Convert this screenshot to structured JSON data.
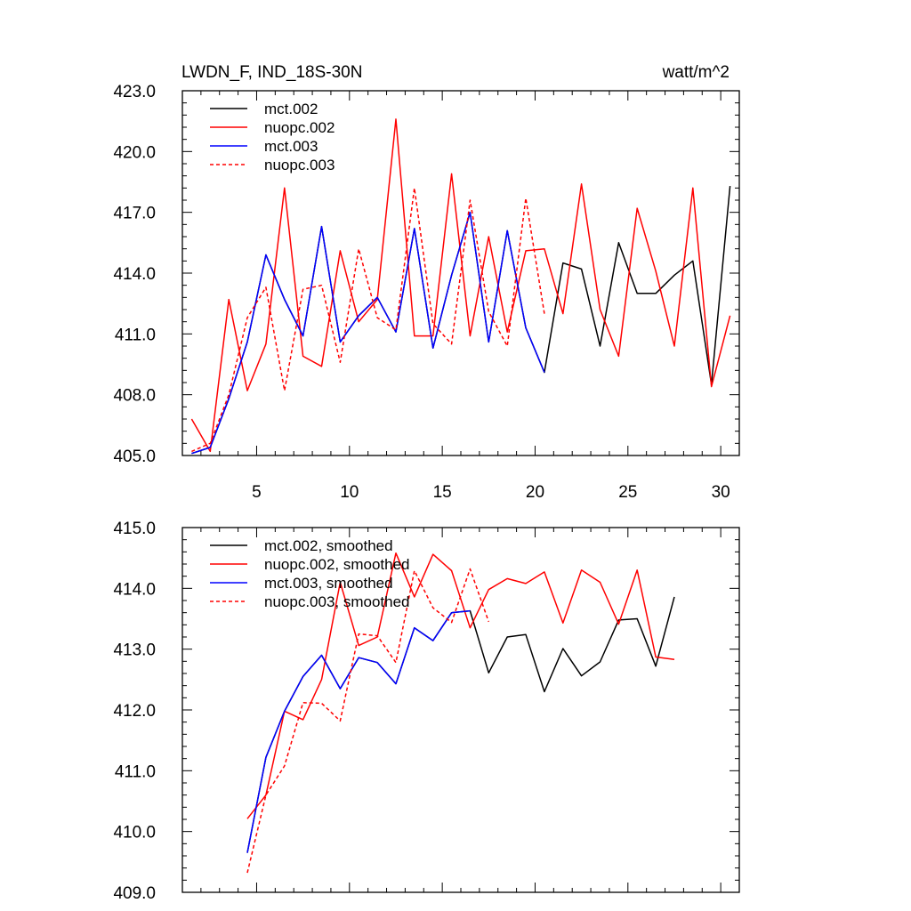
{
  "header": {
    "left_title": "LWDN_F, IND_18S-30N",
    "right_title": "watt/m^2"
  },
  "chart_data": [
    {
      "type": "line",
      "title": "LWDN_F, IND_18S-30N",
      "units": "watt/m^2",
      "xlim": [
        1,
        31
      ],
      "ylim": [
        405,
        423
      ],
      "x_ticks": [
        5,
        10,
        15,
        20,
        25,
        30
      ],
      "x_tick_labels": [
        "5",
        "10",
        "15",
        "20",
        "25",
        "30"
      ],
      "y_ticks": [
        405,
        408,
        411,
        414,
        417,
        420,
        423
      ],
      "y_tick_labels": [
        "405.0",
        "408.0",
        "411.0",
        "414.0",
        "417.0",
        "420.0",
        "423.0"
      ],
      "legend_position": "top-left",
      "series": [
        {
          "name": "mct.002",
          "color": "#000000",
          "dash": "solid",
          "x": [
            1.5,
            2.5,
            3.5,
            4.5,
            5.5,
            6.5,
            7.5,
            8.5,
            9.5,
            10.5,
            11.5,
            12.5,
            13.5,
            14.5,
            15.5,
            16.5,
            17.5,
            18.5,
            19.5,
            20.5,
            21.5,
            22.5,
            23.5,
            24.5,
            25.5,
            26.5,
            27.5,
            28.5,
            29.5,
            30.5
          ],
          "values": [
            405.1,
            405.4,
            407.8,
            410.6,
            414.9,
            412.7,
            410.9,
            416.3,
            410.6,
            411.9,
            412.8,
            411.1,
            416.2,
            410.3,
            413.9,
            417.0,
            410.6,
            416.1,
            411.3,
            409.1,
            414.5,
            414.2,
            410.4,
            415.5,
            413.0,
            413.0,
            413.9,
            414.6,
            408.5,
            418.3
          ]
        },
        {
          "name": "nuopc.002",
          "color": "#ff0000",
          "dash": "solid",
          "x": [
            1.5,
            2.5,
            3.5,
            4.5,
            5.5,
            6.5,
            7.5,
            8.5,
            9.5,
            10.5,
            11.5,
            12.5,
            13.5,
            14.5,
            15.5,
            16.5,
            17.5,
            18.5,
            19.5,
            20.5,
            21.5,
            22.5,
            23.5,
            24.5,
            25.5,
            26.5,
            27.5,
            28.5,
            29.5,
            30.5
          ],
          "values": [
            406.8,
            405.2,
            412.7,
            408.2,
            410.5,
            418.2,
            409.9,
            409.4,
            415.1,
            411.6,
            412.7,
            421.6,
            410.9,
            410.9,
            418.9,
            410.9,
            415.8,
            411.1,
            415.1,
            415.2,
            412.0,
            418.4,
            412.2,
            409.9,
            417.2,
            414.1,
            410.4,
            418.2,
            408.4,
            411.9
          ]
        },
        {
          "name": "mct.003",
          "color": "#0000ff",
          "dash": "solid",
          "x": [
            1.5,
            2.5,
            3.5,
            4.5,
            5.5,
            6.5,
            7.5,
            8.5,
            9.5,
            10.5,
            11.5,
            12.5,
            13.5,
            14.5,
            15.5,
            16.5,
            17.5,
            18.5,
            19.5,
            20.5
          ],
          "values": [
            405.1,
            405.4,
            407.8,
            410.6,
            414.9,
            412.7,
            410.9,
            416.3,
            410.6,
            411.9,
            412.8,
            411.1,
            416.2,
            410.3,
            413.9,
            417.0,
            410.6,
            416.1,
            411.3,
            409.1
          ]
        },
        {
          "name": "nuopc.003",
          "color": "#ff0000",
          "dash": "dashed",
          "x": [
            1.5,
            2.5,
            3.5,
            4.5,
            5.5,
            6.5,
            7.5,
            8.5,
            9.5,
            10.5,
            11.5,
            12.5,
            13.5,
            14.5,
            15.5,
            16.5,
            17.5,
            18.5,
            19.5,
            20.5
          ],
          "values": [
            405.2,
            405.6,
            408.0,
            411.8,
            413.3,
            408.2,
            413.2,
            413.4,
            409.6,
            415.2,
            411.8,
            411.2,
            418.2,
            411.5,
            410.5,
            417.6,
            412.1,
            410.4,
            417.7,
            412.0
          ]
        }
      ]
    },
    {
      "type": "line",
      "xlim": [
        1,
        31
      ],
      "ylim": [
        409,
        415
      ],
      "x_ticks": [
        5,
        10,
        15,
        20,
        25,
        30
      ],
      "y_ticks": [
        409,
        410,
        411,
        412,
        413,
        414,
        415
      ],
      "y_tick_labels": [
        "409.0",
        "410.0",
        "411.0",
        "412.0",
        "413.0",
        "414.0",
        "415.0"
      ],
      "legend_position": "top-left",
      "series": [
        {
          "name": "mct.002, smoothed",
          "color": "#000000",
          "dash": "solid",
          "x": [
            4.5,
            5.5,
            6.5,
            7.5,
            8.5,
            9.5,
            10.5,
            11.5,
            12.5,
            13.5,
            14.5,
            15.5,
            16.5,
            17.5,
            18.5,
            19.5,
            20.5,
            21.5,
            22.5,
            23.5,
            24.5,
            25.5,
            26.5,
            27.5
          ],
          "values": [
            409.65,
            411.22,
            411.98,
            412.55,
            412.9,
            412.35,
            412.86,
            412.78,
            412.43,
            413.35,
            413.14,
            413.6,
            413.63,
            412.61,
            413.2,
            413.24,
            412.3,
            413.01,
            412.56,
            412.79,
            413.48,
            413.5,
            412.72,
            413.86
          ]
        },
        {
          "name": "nuopc.002, smoothed",
          "color": "#ff0000",
          "dash": "solid",
          "x": [
            4.5,
            5.5,
            6.5,
            7.5,
            8.5,
            9.5,
            10.5,
            11.5,
            12.5,
            13.5,
            14.5,
            15.5,
            16.5,
            17.5,
            18.5,
            19.5,
            20.5,
            21.5,
            22.5,
            23.5,
            24.5,
            25.5,
            26.5,
            27.5
          ],
          "values": [
            410.21,
            410.6,
            411.98,
            411.84,
            412.5,
            414.1,
            413.06,
            413.2,
            414.58,
            413.86,
            414.56,
            414.29,
            413.35,
            413.98,
            414.16,
            414.08,
            414.27,
            413.43,
            414.3,
            414.1,
            413.41,
            414.3,
            412.87,
            412.83
          ]
        },
        {
          "name": "mct.003, smoothed",
          "color": "#0000ff",
          "dash": "solid",
          "x": [
            4.5,
            5.5,
            6.5,
            7.5,
            8.5,
            9.5,
            10.5,
            11.5,
            12.5,
            13.5,
            14.5,
            15.5,
            16.5
          ],
          "values": [
            409.65,
            411.22,
            411.98,
            412.55,
            412.9,
            412.35,
            412.86,
            412.78,
            412.43,
            413.35,
            413.14,
            413.6,
            413.63
          ]
        },
        {
          "name": "nuopc.003, smoothed",
          "color": "#ff0000",
          "dash": "dashed",
          "x": [
            4.5,
            5.5,
            6.5,
            7.5,
            8.5,
            9.5,
            10.5,
            11.5,
            12.5,
            13.5,
            14.5,
            15.5,
            16.5,
            17.5
          ],
          "values": [
            409.32,
            410.6,
            411.08,
            412.12,
            412.11,
            411.82,
            413.25,
            413.22,
            412.78,
            414.29,
            413.68,
            413.44,
            414.32,
            413.45
          ]
        }
      ]
    }
  ]
}
